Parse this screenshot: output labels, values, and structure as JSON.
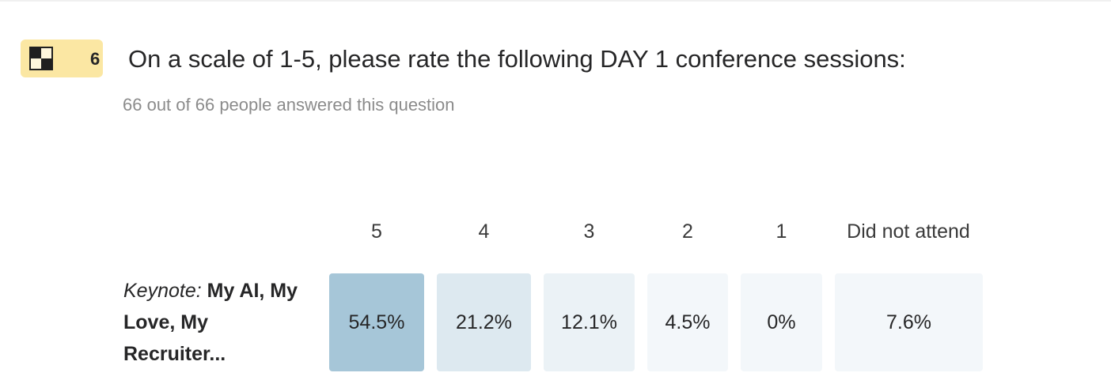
{
  "question": {
    "number": "6",
    "icon": "matrix-icon",
    "title": "On a scale of 1-5, please rate the following DAY 1 conference sessions:",
    "subtitle": "66 out of 66 people answered this question",
    "badge_color": "#fbe7a3"
  },
  "matrix": {
    "columns": [
      "5",
      "4",
      "3",
      "2",
      "1",
      "Did not attend"
    ],
    "rows": [
      {
        "label_prefix": "Keynote:",
        "label_rest": "My AI, My Love, My Recruiter...",
        "cells": [
          "54.5%",
          "21.2%",
          "12.1%",
          "4.5%",
          "0%",
          "7.6%"
        ],
        "colors": [
          "#a6c6d8",
          "#dde9f0",
          "#ebf2f6",
          "#f3f7fa",
          "#f3f7fa",
          "#f3f7fa"
        ]
      }
    ]
  }
}
